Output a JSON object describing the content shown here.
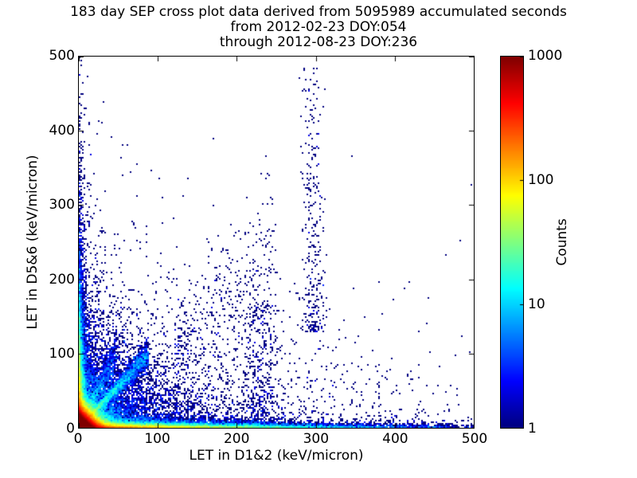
{
  "chart_data": {
    "type": "heatmap",
    "title_lines": [
      "183 day SEP cross plot data derived from 5095989 accumulated seconds",
      "from 2012-02-23 DOY:054",
      "through 2012-08-23 DOY:236"
    ],
    "xlabel": "LET in D1&2 (keV/micron)",
    "ylabel": "LET in D5&6 (keV/micron)",
    "xlim": [
      0,
      500
    ],
    "ylim": [
      0,
      500
    ],
    "xticks": [
      "0",
      "100",
      "200",
      "300",
      "400",
      "500"
    ],
    "yticks": [
      "0",
      "100",
      "200",
      "300",
      "400",
      "500"
    ],
    "xtick_values": [
      0,
      100,
      200,
      300,
      400,
      500
    ],
    "ytick_values": [
      0,
      100,
      200,
      300,
      400,
      500
    ],
    "grid": false,
    "background_color": "#ffffff",
    "frame_color": "#000000",
    "colormap": "jet",
    "bin_size_px": 2,
    "colorbar": {
      "label": "Counts",
      "scale": "log",
      "domain": [
        1,
        1000
      ],
      "tick_labels": [
        "1000",
        "100",
        "10",
        "1"
      ],
      "tick_values": [
        1000,
        100,
        10,
        1
      ],
      "low_color": "#00008b",
      "high_color": "#8b0000"
    },
    "density_components": [
      {
        "label": "core-hotspot",
        "kind": "exp2d",
        "n": 160000,
        "mean_x": 6.5,
        "mean_y": 6.5
      },
      {
        "label": "bottom-band",
        "kind": "exp2d",
        "n": 22000,
        "mean_x": 100,
        "mean_y": 2.6
      },
      {
        "label": "left-band",
        "kind": "exp2d",
        "n": 9000,
        "mean_x": 2.6,
        "mean_y": 55
      },
      {
        "label": "near-origin-cloud",
        "kind": "exp2d",
        "n": 7000,
        "mean_x": 42,
        "mean_y": 38
      },
      {
        "label": "sparse-background",
        "kind": "exp2d",
        "n": 2200,
        "mean_x": 150,
        "mean_y": 60
      },
      {
        "label": "left-tall-sparse",
        "kind": "exp2d",
        "n": 600,
        "mean_x": 10,
        "mean_y": 170
      },
      {
        "label": "diagonal-track",
        "kind": "track",
        "n": 2600,
        "x0": 4,
        "x1": 88,
        "slope": 1.12,
        "jitter": 0.1
      },
      {
        "label": "steep-track",
        "kind": "track",
        "n": 700,
        "x0": 8,
        "x1": 48,
        "slope": 2.1,
        "jitter": 0.15
      },
      {
        "label": "mid-diagonal-spray",
        "kind": "track",
        "n": 320,
        "x0": 120,
        "x1": 250,
        "slope": 0.95,
        "jitter": 0.22
      },
      {
        "label": "vertical-band-300",
        "kind": "vband",
        "n": 300,
        "x_mean": 296,
        "x_sigma": 7,
        "y0": 130,
        "y1": 485,
        "bias": 1.8
      },
      {
        "label": "vertical-band-230",
        "kind": "vband",
        "n": 420,
        "x_mean": 230,
        "x_sigma": 11,
        "y0": 2,
        "y1": 170,
        "bias": 1.6
      }
    ]
  }
}
